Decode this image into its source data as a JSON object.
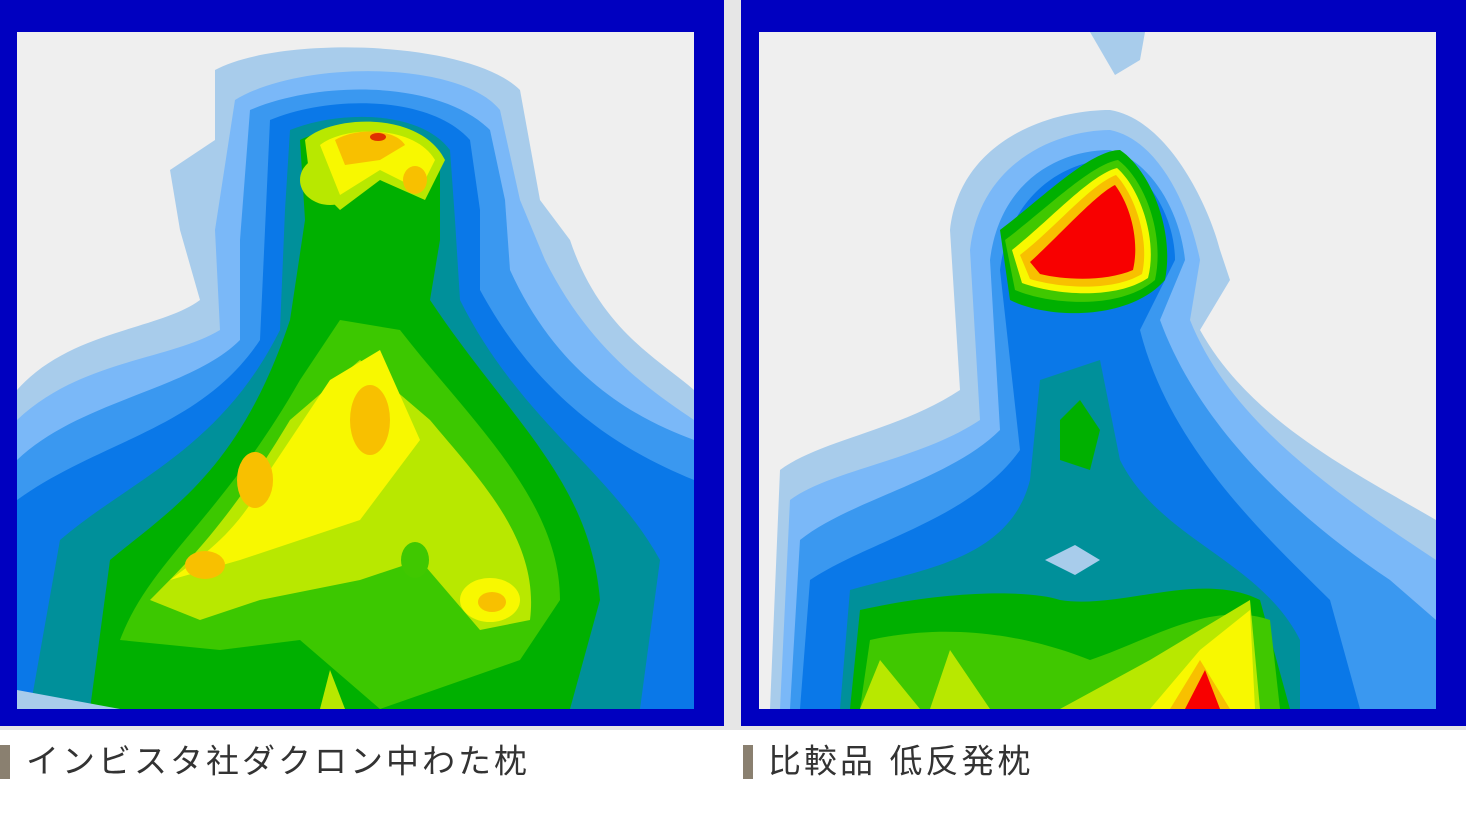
{
  "panels": [
    {
      "caption": "インビスタ社ダクロン中わた枕"
    },
    {
      "caption": "比較品 低反発枕"
    }
  ]
}
